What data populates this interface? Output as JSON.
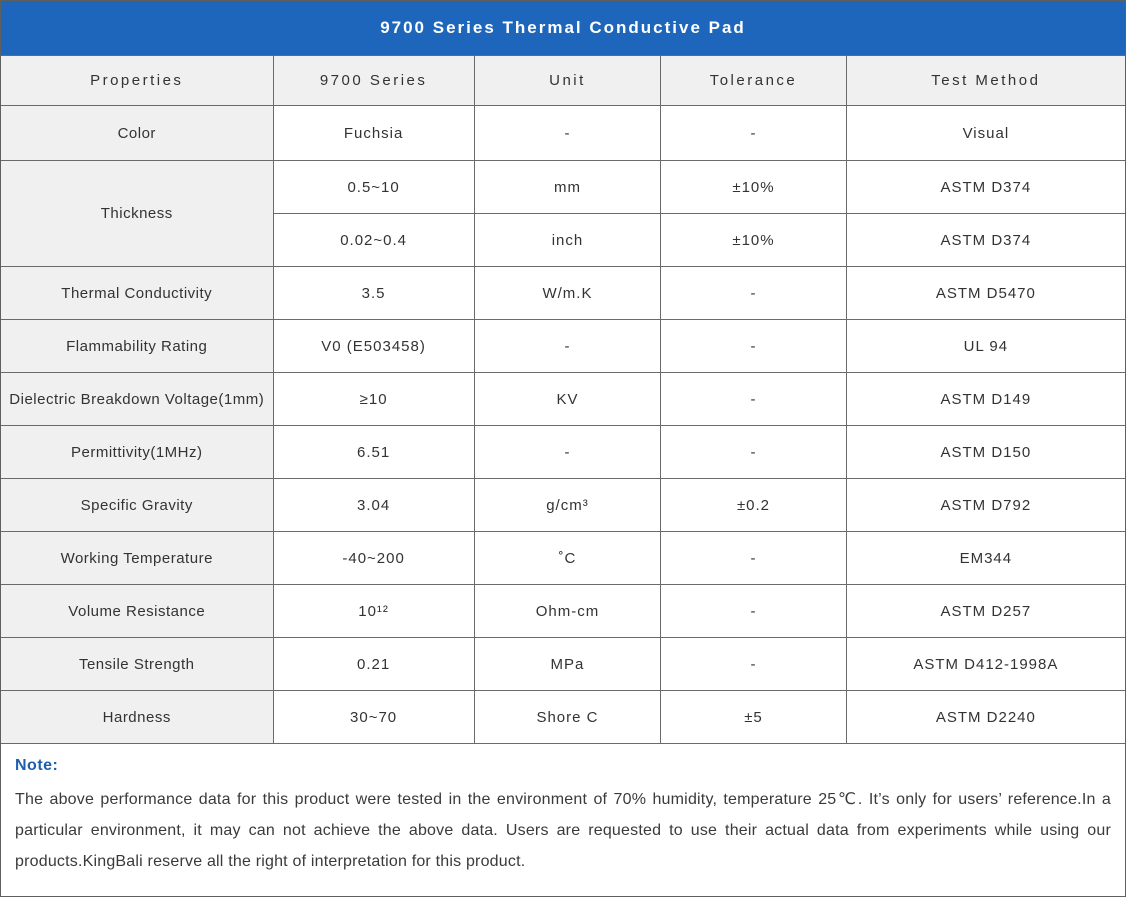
{
  "title": "9700 Series Thermal Conductive Pad",
  "colors": {
    "title_bar_bg": "#1d66bb",
    "title_text": "#ffffff",
    "header_row_bg": "#f0f0f0",
    "property_col_bg": "#f0f0f0",
    "grid_border": "#6a6a6a",
    "note_accent": "#1d5fad",
    "body_text": "#333333"
  },
  "table": {
    "columns": [
      "Properties",
      "9700 Series",
      "Unit",
      "Tolerance",
      "Test Method"
    ],
    "rows": [
      {
        "property": "Color",
        "value": "Fuchsia",
        "unit": "-",
        "tolerance": "-",
        "method": "Visual"
      },
      {
        "property": "Thickness",
        "value": "0.5~10",
        "unit": "mm",
        "tolerance": "±10%",
        "method": "ASTM D374"
      },
      {
        "value": "0.02~0.4",
        "unit": "inch",
        "tolerance": "±10%",
        "method": "ASTM D374"
      },
      {
        "property": "Thermal Conductivity",
        "value": "3.5",
        "unit": "W/m.K",
        "tolerance": "-",
        "method": "ASTM D5470"
      },
      {
        "property": "Flammability Rating",
        "value": "V0 (E503458)",
        "unit": "-",
        "tolerance": "-",
        "method": "UL 94"
      },
      {
        "property": "Dielectric Breakdown Voltage(1mm)",
        "value": "≥10",
        "unit": "KV",
        "tolerance": "-",
        "method": "ASTM D149"
      },
      {
        "property": "Permittivity(1MHz)",
        "value": "6.51",
        "unit": "-",
        "tolerance": "-",
        "method": "ASTM D150"
      },
      {
        "property": "Specific Gravity",
        "value": "3.04",
        "unit": "g/cm³",
        "tolerance": "±0.2",
        "method": "ASTM D792"
      },
      {
        "property": "Working Temperature",
        "value": "-40~200",
        "unit": "˚C",
        "tolerance": "-",
        "method": "EM344"
      },
      {
        "property": "Volume Resistance",
        "value": "10¹²",
        "unit": "Ohm-cm",
        "tolerance": "-",
        "method": "ASTM D257"
      },
      {
        "property": "Tensile Strength",
        "value": "0.21",
        "unit": "MPa",
        "tolerance": "-",
        "method": "ASTM D412-1998A"
      },
      {
        "property": "Hardness",
        "value": "30~70",
        "unit": "Shore C",
        "tolerance": "±5",
        "method": "ASTM D2240"
      }
    ]
  },
  "note": {
    "title": "Note:",
    "text": "The above performance data for this product were tested in the environment of 70% humidity, temperature 25℃. It’s only for users’ reference.In a particular environment, it may can not achieve the above data. Users are requested to use their actual data from experiments while using our products.KingBali reserve all the right of interpretation for this product."
  }
}
